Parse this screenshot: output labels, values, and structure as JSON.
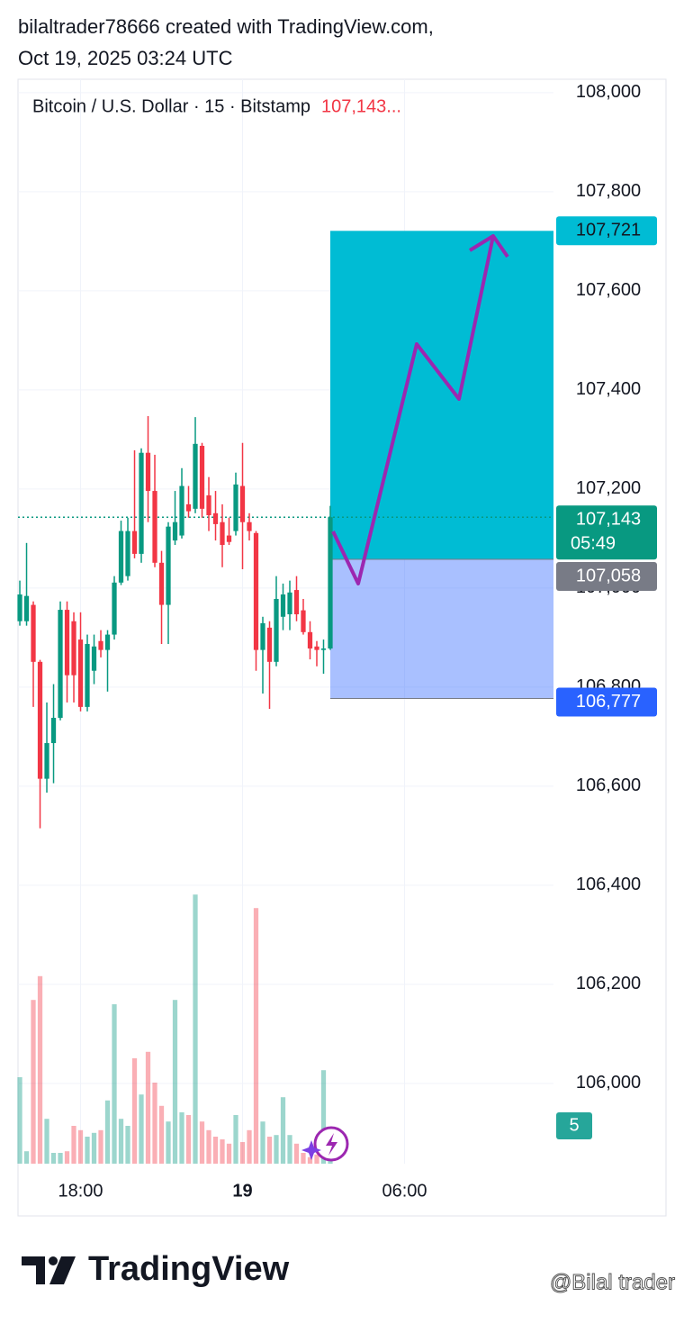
{
  "header": {
    "line1": "bilaltrader78666 created with TradingView.com,",
    "line2": "Oct 19, 2025 03:24 UTC"
  },
  "chart_data": {
    "type": "candlestick",
    "title": "Bitcoin / U.S. Dollar · 15 · Bitstamp",
    "legend_price": "107,143...",
    "open": [
      106933,
      106933,
      106966,
      106851,
      106615,
      106687,
      106738,
      106956,
      106933,
      106896,
      106760,
      106833,
      106893,
      106875,
      106906,
      107011,
      107024,
      107115,
      107069,
      107273,
      107196,
      107051,
      106966,
      107096,
      107106,
      107169,
      107160,
      107287,
      107187,
      107151,
      107133,
      107106,
      107115,
      107206,
      107133,
      107111,
      106875,
      106920,
      106851,
      106942,
      106947,
      106996,
      106955,
      106911,
      106882,
      106875,
      106878
    ],
    "high": [
      107015,
      107091,
      106973,
      106855,
      106769,
      106806,
      106973,
      106973,
      106951,
      106951,
      106906,
      106906,
      106915,
      106915,
      107024,
      107136,
      107142,
      107278,
      107282,
      107347,
      107269,
      107075,
      107133,
      107196,
      107242,
      107206,
      107345,
      107293,
      107224,
      107196,
      107169,
      107142,
      107233,
      107293,
      107151,
      107115,
      106942,
      106933,
      107024,
      107009,
      107015,
      107024,
      106978,
      106933,
      106893,
      106896,
      107166
    ],
    "low": [
      106924,
      106924,
      106760,
      106515,
      106587,
      106606,
      106733,
      106769,
      106769,
      106751,
      106751,
      106806,
      106860,
      106791,
      106896,
      107006,
      107015,
      107060,
      107051,
      107133,
      107042,
      106887,
      106887,
      107087,
      107100,
      107142,
      107151,
      107142,
      107115,
      107096,
      107042,
      107087,
      107106,
      107038,
      107096,
      106833,
      106787,
      106756,
      106842,
      106915,
      106915,
      106933,
      106906,
      106856,
      106842,
      106827,
      106875
    ],
    "close": [
      106987,
      106984,
      106851,
      106615,
      106687,
      106738,
      106956,
      106824,
      106824,
      106760,
      106887,
      106882,
      106875,
      106906,
      107011,
      107115,
      107115,
      107069,
      107273,
      107196,
      107051,
      106966,
      107124,
      107133,
      107206,
      107155,
      107291,
      107160,
      107147,
      107129,
      107087,
      107093,
      107209,
      107133,
      107115,
      106875,
      106929,
      106851,
      106978,
      106987,
      106991,
      106947,
      106911,
      106878,
      106875,
      106878,
      107143
    ],
    "volume": [
      160,
      23,
      303,
      347,
      83,
      20,
      20,
      23,
      70,
      62,
      50,
      57,
      62,
      117,
      295,
      83,
      70,
      195,
      128,
      207,
      150,
      107,
      78,
      303,
      95,
      90,
      498,
      78,
      62,
      50,
      45,
      37,
      90,
      40,
      62,
      473,
      78,
      50,
      53,
      123,
      53,
      37,
      20,
      12,
      17,
      173,
      5
    ],
    "xlim": [
      -0.27,
      79.07
    ],
    "xticks": [
      {
        "value": 9,
        "label": "18:00"
      },
      {
        "value": 33,
        "label": "19"
      },
      {
        "value": 57,
        "label": "06:00"
      }
    ],
    "ylim": [
      105838,
      108027
    ],
    "yticks": [
      {
        "value": 108000,
        "label": "108,000"
      },
      {
        "value": 107800,
        "label": "107,800"
      },
      {
        "value": 107600,
        "label": "107,600"
      },
      {
        "value": 107400,
        "label": "107,400"
      },
      {
        "value": 107200,
        "label": "107,200"
      },
      {
        "value": 107000,
        "label": "107,000"
      },
      {
        "value": 106800,
        "label": "106,800"
      },
      {
        "value": 106600,
        "label": "106,600"
      },
      {
        "value": 106400,
        "label": "106,400"
      },
      {
        "value": 106200,
        "label": "106,200"
      },
      {
        "value": 106000,
        "label": "106,000"
      }
    ],
    "grid": true,
    "up_color": "#089981",
    "down_color": "#f23645",
    "current_price": {
      "value": 107143,
      "label": "107,143"
    },
    "countdown": "05:49",
    "position": {
      "target": {
        "value": 107721,
        "label": "107,721",
        "color": "#00bcd4"
      },
      "entry": {
        "value": 107058,
        "label": "107,058",
        "color": "#787b86"
      },
      "stop": {
        "value": 106777,
        "label": "106,777",
        "color": "#2962ff"
      }
    }
  },
  "footer": {
    "brand": "TradingView",
    "watermark": "@Bilal trader"
  }
}
